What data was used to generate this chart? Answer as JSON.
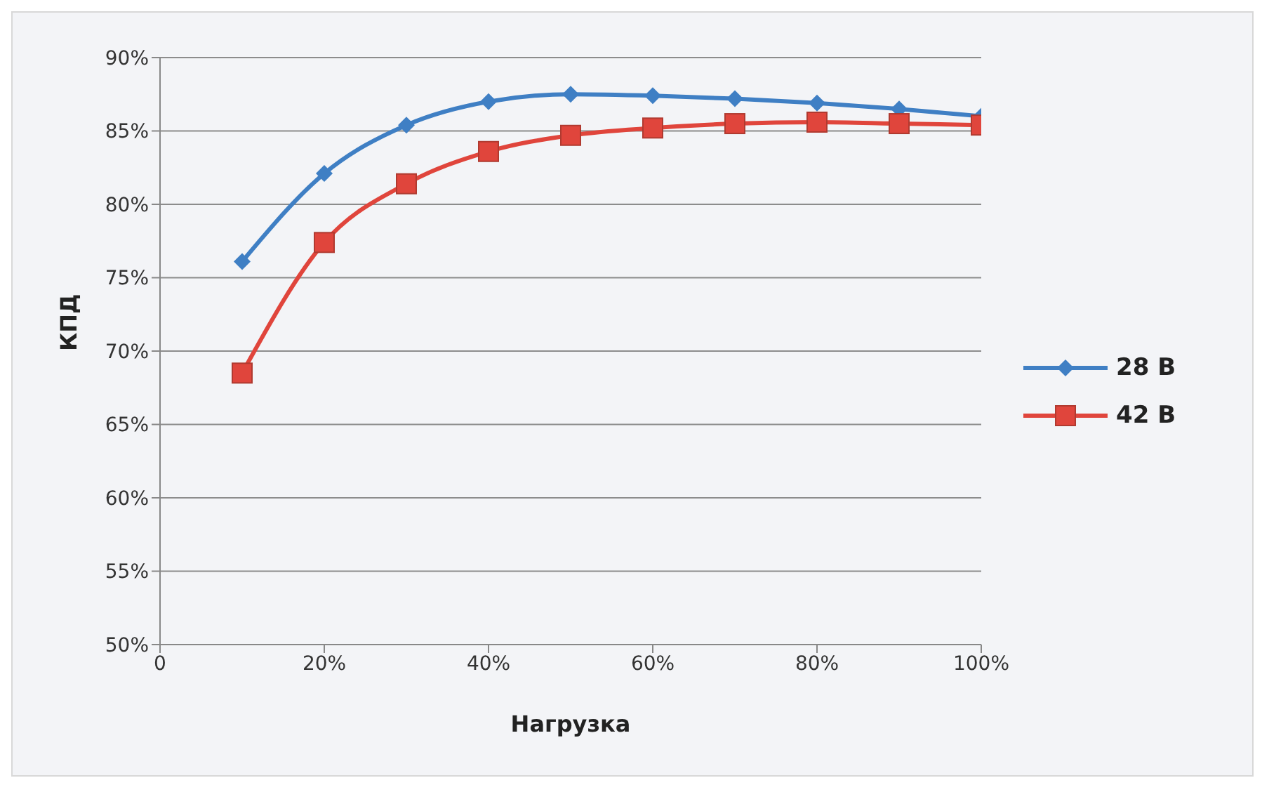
{
  "chart_data": {
    "type": "line",
    "xlabel": "Нагрузка",
    "ylabel": "КПД",
    "x": [
      10,
      20,
      30,
      40,
      50,
      60,
      70,
      80,
      90,
      100
    ],
    "series": [
      {
        "name": "28 В",
        "color": "#3f7fc4",
        "marker": "diamond",
        "values": [
          76.1,
          82.1,
          85.4,
          87.0,
          87.5,
          87.4,
          87.2,
          86.9,
          86.5,
          86.0
        ]
      },
      {
        "name": "42 В",
        "color": "#e0453c",
        "marker": "square",
        "values": [
          68.5,
          77.4,
          81.4,
          83.6,
          84.7,
          85.2,
          85.5,
          85.6,
          85.5,
          85.4
        ]
      }
    ],
    "xlim": [
      0,
      100
    ],
    "xticks": [
      0,
      {
        "value": 20,
        "label": "20%"
      },
      {
        "value": 40,
        "label": "40%"
      },
      {
        "value": 60,
        "label": "60%"
      },
      {
        "value": 80,
        "label": "80%"
      },
      {
        "value": 100,
        "label": "100%"
      }
    ],
    "ylim": [
      50,
      90
    ],
    "yticks": [
      {
        "value": 50,
        "label": "50%"
      },
      {
        "value": 55,
        "label": "55%"
      },
      {
        "value": 60,
        "label": "60%"
      },
      {
        "value": 65,
        "label": "65%"
      },
      {
        "value": 70,
        "label": "70%"
      },
      {
        "value": 75,
        "label": "75%"
      },
      {
        "value": 80,
        "label": "80%"
      },
      {
        "value": 85,
        "label": "85%"
      },
      {
        "value": 90,
        "label": "90%"
      }
    ],
    "grid": "y",
    "legend": "right",
    "line_style": "solid"
  }
}
